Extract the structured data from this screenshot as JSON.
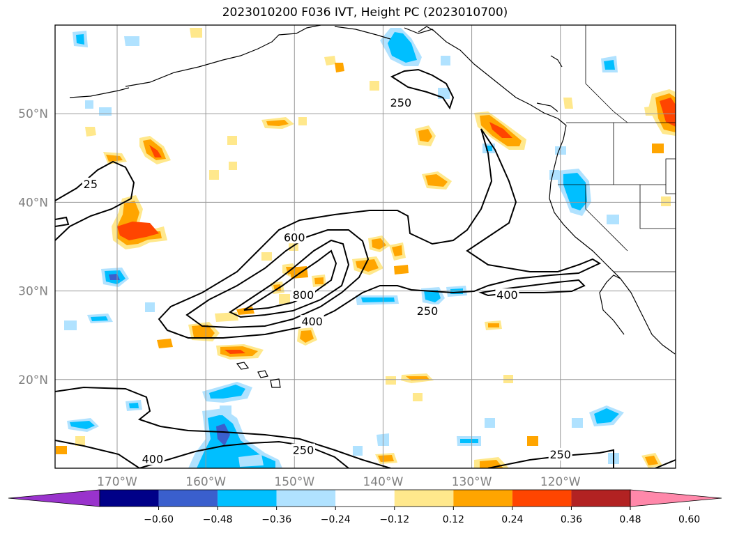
{
  "title": "2023010200 F036 IVT, Height PC (2023010700)",
  "map": {
    "lat_ticks": [
      {
        "lat": 50,
        "label": "50°N"
      },
      {
        "lat": 40,
        "label": "40°N"
      },
      {
        "lat": 30,
        "label": "30°N"
      },
      {
        "lat": 20,
        "label": "20°N"
      }
    ],
    "lon_ticks": [
      {
        "lon": -170,
        "label": "170°W"
      },
      {
        "lon": -160,
        "label": "160°W"
      },
      {
        "lon": -150,
        "label": "150°W"
      },
      {
        "lon": -140,
        "label": "140°W"
      },
      {
        "lon": -130,
        "label": "130°W"
      },
      {
        "lon": -120,
        "label": "120°W"
      }
    ],
    "extent": {
      "lon_min": -177,
      "lon_max": -107,
      "lat_min": 10,
      "lat_max": 60
    },
    "contour_labels": [
      {
        "text": "600",
        "lon": -150,
        "lat": 36
      },
      {
        "text": "800",
        "lon": -149,
        "lat": 29.5
      },
      {
        "text": "400",
        "lon": -148,
        "lat": 26.5
      },
      {
        "text": "250",
        "lon": -135,
        "lat": 27.7
      },
      {
        "text": "400",
        "lon": -126,
        "lat": 29.5
      },
      {
        "text": "250",
        "lon": -138,
        "lat": 51.2
      },
      {
        "text": "25",
        "lon": -173,
        "lat": 42
      },
      {
        "text": "250",
        "lon": -149,
        "lat": 12
      },
      {
        "text": "400",
        "lon": -166,
        "lat": 11
      },
      {
        "text": "250",
        "lon": -120,
        "lat": 11.5
      }
    ]
  },
  "colorbar": {
    "ticks": [
      "−0.60",
      "−0.48",
      "−0.36",
      "−0.24",
      "−0.12",
      "0.12",
      "0.24",
      "0.36",
      "0.48",
      "0.60"
    ],
    "colors": [
      "#9933cc",
      "#000088",
      "#3a5fcd",
      "#00bfff",
      "#b0e2ff",
      "#ffffff",
      "#ffe88c",
      "#ffa500",
      "#ff4500",
      "#b22222",
      "#ff88aa"
    ]
  }
}
